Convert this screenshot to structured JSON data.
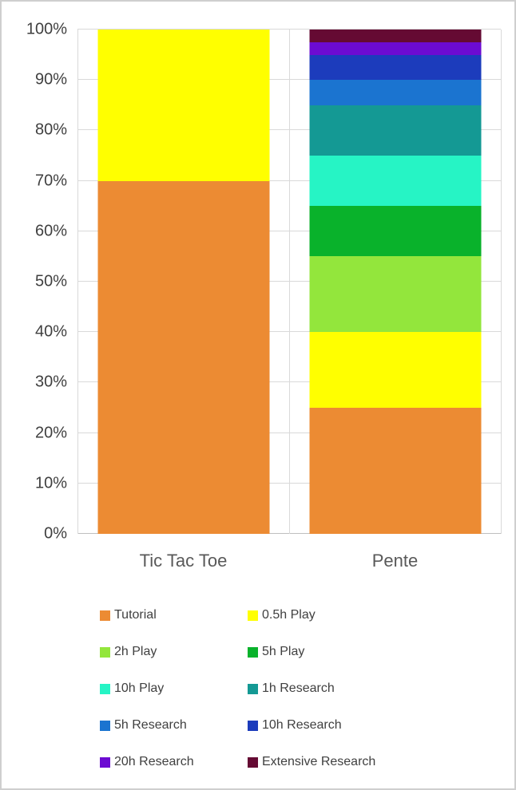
{
  "chart_data": {
    "type": "bar",
    "stacked": true,
    "percent_stacked": true,
    "title": "",
    "xlabel": "",
    "ylabel": "",
    "grid": true,
    "legend_position": "bottom",
    "categories": [
      "Tic Tac Toe",
      "Pente"
    ],
    "series": [
      {
        "name": "Tutorial",
        "color": "#EC8B33",
        "values": [
          70,
          25
        ]
      },
      {
        "name": "0.5h Play",
        "color": "#FFFF00",
        "values": [
          30,
          15
        ]
      },
      {
        "name": "2h Play",
        "color": "#93E63C",
        "values": [
          0,
          15
        ]
      },
      {
        "name": "5h Play",
        "color": "#09B22B",
        "values": [
          0,
          10
        ]
      },
      {
        "name": "10h Play",
        "color": "#26F4C5",
        "values": [
          0,
          10
        ]
      },
      {
        "name": "1h Research",
        "color": "#149994",
        "values": [
          0,
          10
        ]
      },
      {
        "name": "5h Research",
        "color": "#1B74D0",
        "values": [
          0,
          5
        ]
      },
      {
        "name": "10h Research",
        "color": "#1C3CBC",
        "values": [
          0,
          5
        ]
      },
      {
        "name": "20h Research",
        "color": "#6C0BD2",
        "values": [
          0,
          2.5
        ]
      },
      {
        "name": "Extensive Research",
        "color": "#650A33",
        "values": [
          0,
          2.5
        ]
      }
    ],
    "y_axis": {
      "min": 0,
      "max": 100,
      "ticks": [
        "0%",
        "10%",
        "20%",
        "30%",
        "40%",
        "50%",
        "60%",
        "70%",
        "80%",
        "90%",
        "100%"
      ]
    }
  }
}
